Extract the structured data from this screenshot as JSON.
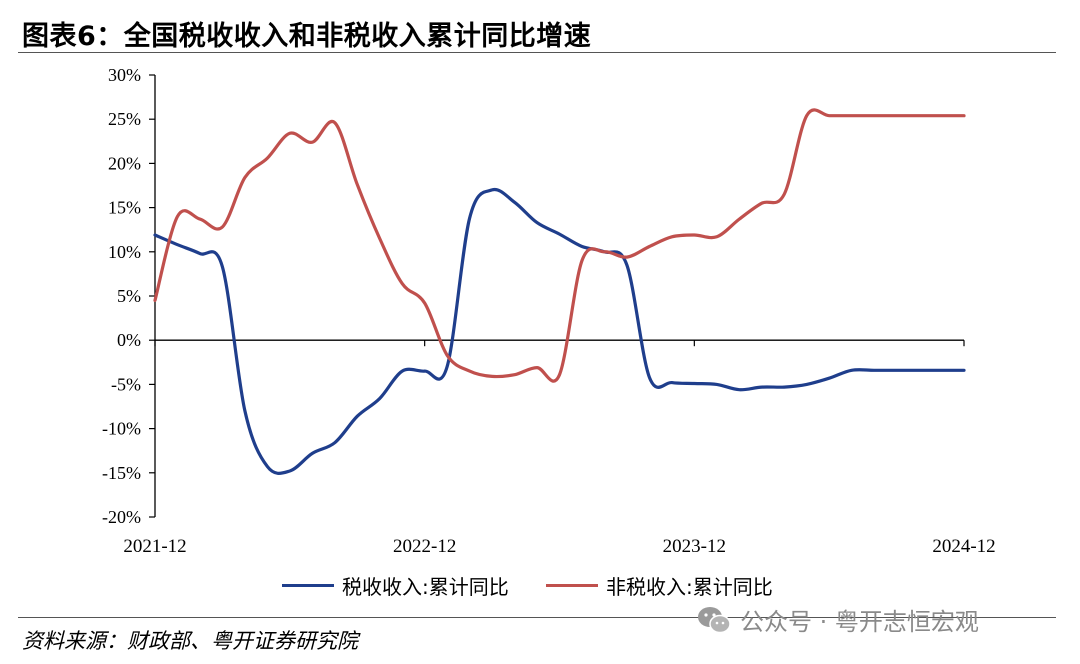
{
  "title": "图表6：全国税收收入和非税收入累计同比增速",
  "source": "资料来源：财政部、粤开证券研究院",
  "watermark": "公众号 · 粤开志恒宏观",
  "colors": {
    "tax": "#1f3e8c",
    "nontax": "#c0504d",
    "axis": "#000000"
  },
  "chart_data": {
    "type": "line",
    "title": "",
    "xlabel": "",
    "ylabel": "",
    "ylim": [
      -20,
      30
    ],
    "y_ticks": [
      "-20%",
      "-15%",
      "-10%",
      "-5%",
      "0%",
      "5%",
      "10%",
      "15%",
      "20%",
      "25%",
      "30%"
    ],
    "x_ticks": [
      "2021-12",
      "2022-12",
      "2023-12",
      "2024-12"
    ],
    "x": [
      "2021-12",
      "2022-01",
      "2022-02",
      "2022-03",
      "2022-04",
      "2022-05",
      "2022-06",
      "2022-07",
      "2022-08",
      "2022-09",
      "2022-10",
      "2022-11",
      "2022-12",
      "2023-01",
      "2023-02",
      "2023-03",
      "2023-04",
      "2023-05",
      "2023-06",
      "2023-07",
      "2023-08",
      "2023-09",
      "2023-10",
      "2023-11",
      "2023-12",
      "2024-01",
      "2024-02",
      "2024-03",
      "2024-04",
      "2024-05",
      "2024-06",
      "2024-07",
      "2024-08",
      "2024-09",
      "2024-10",
      "2024-11",
      "2024-12"
    ],
    "legend_position": "bottom",
    "grid": false,
    "series": [
      {
        "name": "税收收入:累计同比",
        "values": [
          11.9,
          10.8,
          9.8,
          8.3,
          -8.0,
          -14.3,
          -14.8,
          -12.8,
          -11.6,
          -8.6,
          -6.6,
          -3.5,
          -3.5,
          -3.0,
          13.8,
          17.0,
          15.6,
          13.3,
          12.0,
          10.6,
          10.0,
          8.5,
          -4.2,
          -4.8,
          -4.9,
          -5.0,
          -5.6,
          -5.3,
          -5.3,
          -5.0,
          -4.3,
          -3.4,
          -3.4,
          -3.4,
          -3.4,
          -3.4,
          -3.4
        ]
      },
      {
        "name": "非税收入:累计同比",
        "values": [
          4.5,
          14.0,
          13.7,
          12.8,
          18.4,
          20.6,
          23.4,
          22.4,
          24.6,
          17.6,
          11.5,
          6.4,
          4.2,
          -1.7,
          -3.5,
          -4.1,
          -3.9,
          -3.1,
          -3.9,
          9.0,
          10.0,
          9.4,
          10.6,
          11.7,
          11.9,
          11.7,
          13.7,
          15.5,
          16.5,
          25.4,
          25.4,
          25.4,
          25.4,
          25.4,
          25.4,
          25.4,
          25.4
        ]
      }
    ]
  }
}
